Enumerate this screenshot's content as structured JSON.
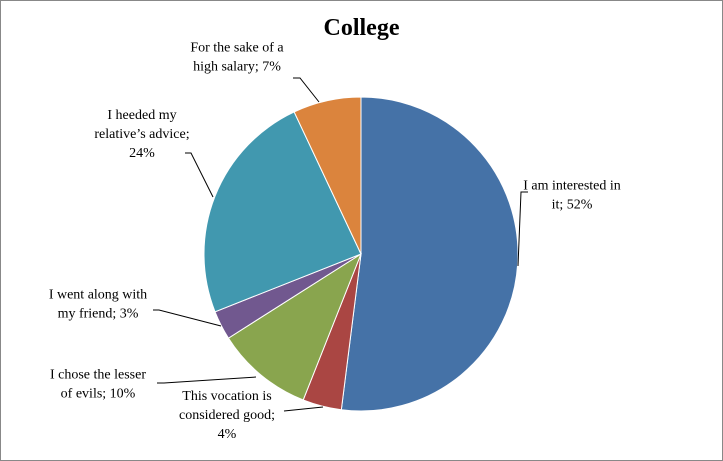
{
  "chart_data": {
    "type": "pie",
    "title": "College",
    "start_angle_deg": 0,
    "direction": "clockwise",
    "slices": [
      {
        "label": "I am interested in it",
        "value": 52,
        "value_text": "52%",
        "color": "#4572a7",
        "label_lines": [
          "I am interested in",
          "it; 52%"
        ]
      },
      {
        "label": "This vocation is considered good",
        "value": 4,
        "value_text": "4%",
        "color": "#aa4643",
        "label_lines": [
          "This vocation is",
          "considered good;",
          "4%"
        ]
      },
      {
        "label": "I chose the lesser of evils",
        "value": 10,
        "value_text": "10%",
        "color": "#89a54e",
        "label_lines": [
          "I chose the lesser",
          "of evils; 10%"
        ]
      },
      {
        "label": "I went along with my friend",
        "value": 3,
        "value_text": "3%",
        "color": "#71588f",
        "label_lines": [
          "I went along with",
          "my friend; 3%"
        ]
      },
      {
        "label": "I heeded my relative's advice",
        "value": 24,
        "value_text": "24%",
        "color": "#4198af",
        "label_lines": [
          "I heeded my",
          "relative’s advice;",
          "24%"
        ]
      },
      {
        "label": "For the sake of a high salary",
        "value": 7,
        "value_text": "7%",
        "color": "#db843d",
        "label_lines": [
          "For the sake of a",
          "high salary; 7%"
        ]
      }
    ]
  }
}
